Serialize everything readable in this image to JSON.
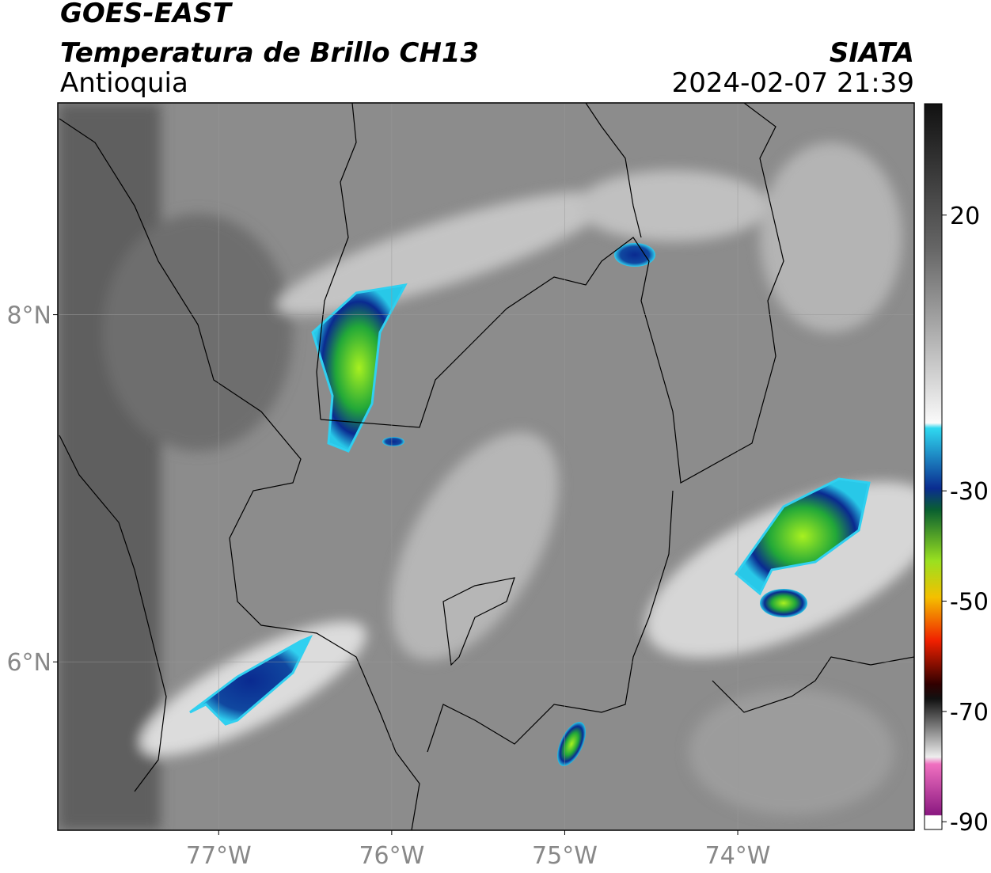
{
  "header": {
    "satellite": "GOES-EAST",
    "product": "Temperatura de Brillo CH13",
    "region": "Antioquia",
    "source": "SIATA",
    "datetime": "2024-02-07 21:39"
  },
  "map": {
    "xlim": [
      -77.93,
      -72.98
    ],
    "ylim": [
      5.03,
      9.22
    ],
    "xticks": [
      {
        "value": -77,
        "label": "77°W"
      },
      {
        "value": -76,
        "label": "76°W"
      },
      {
        "value": -75,
        "label": "75°W"
      },
      {
        "value": -74,
        "label": "74°W"
      }
    ],
    "yticks": [
      {
        "value": 6,
        "label": "6°N"
      },
      {
        "value": 8,
        "label": "8°N"
      }
    ],
    "grid": true
  },
  "colorbar": {
    "lim": [
      -91.4,
      40.2
    ],
    "ticks": [
      20,
      -30,
      -50,
      -70,
      -90
    ]
  }
}
